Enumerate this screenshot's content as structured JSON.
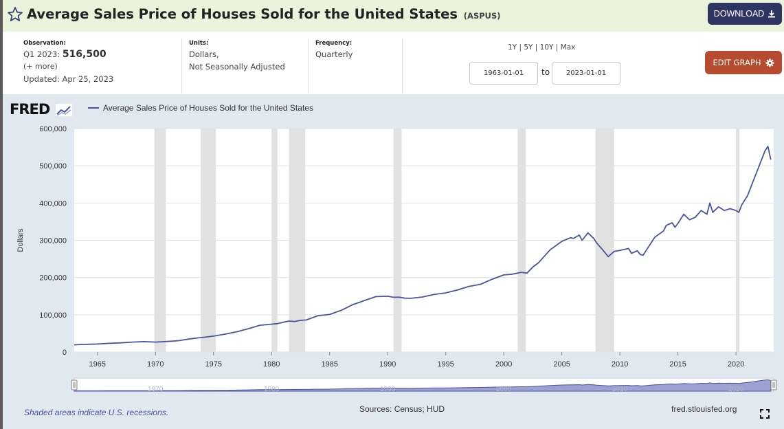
{
  "header": {
    "title": "Average Sales Price of Houses Sold for the United States",
    "series_id": "(ASPUS)",
    "download_label": "DOWNLOAD",
    "favorite_icon": "star-icon",
    "download_icon": "download-icon",
    "background_color": "#eaf3db",
    "download_button_color": "#2f3563"
  },
  "meta": {
    "observation_label": "Observation:",
    "observation_period": "Q1 2023:",
    "observation_value": "516,500",
    "more_link": "(+ more)",
    "updated": "Updated: Apr 25, 2023",
    "units_label": "Units:",
    "units_line1": "Dollars,",
    "units_line2": "Not Seasonally Adjusted",
    "frequency_label": "Frequency:",
    "frequency_value": "Quarterly"
  },
  "range": {
    "presets": [
      "1Y",
      "5Y",
      "10Y",
      "Max"
    ],
    "start_date": "1963-01-01",
    "end_date": "2023-01-01",
    "to_label": "to"
  },
  "edit_button": {
    "label": "EDIT GRAPH",
    "icon": "gear-icon",
    "color": "#b64b2f"
  },
  "chart_header": {
    "logo_text": "FRED",
    "logo_icon": "line-chart-icon",
    "legend_label": "Average Sales Price of Houses Sold for the United States",
    "legend_color": "#4953a1"
  },
  "chart_data": {
    "type": "line",
    "title": "",
    "xlabel": "",
    "ylabel": "Dollars",
    "xlim": [
      1963.0,
      2023.25
    ],
    "ylim": [
      0,
      600000
    ],
    "y_ticks": [
      0,
      100000,
      200000,
      300000,
      400000,
      500000,
      600000
    ],
    "y_tick_labels": [
      "0",
      "100,000",
      "200,000",
      "300,000",
      "400,000",
      "500,000",
      "600,000"
    ],
    "x_ticks": [
      1965,
      1970,
      1975,
      1980,
      1985,
      1990,
      1995,
      2000,
      2005,
      2010,
      2015,
      2020
    ],
    "x_tick_labels": [
      "1965",
      "1970",
      "1975",
      "1980",
      "1985",
      "1990",
      "1995",
      "2000",
      "2005",
      "2010",
      "2015",
      "2020"
    ],
    "grid": "horizontal",
    "legend": "top-left",
    "recessions": [
      [
        1969.9,
        1970.9
      ],
      [
        1973.9,
        1975.2
      ],
      [
        1980.0,
        1980.5
      ],
      [
        1981.5,
        1982.9
      ],
      [
        1990.5,
        1991.2
      ],
      [
        2001.2,
        2001.9
      ],
      [
        2007.9,
        2009.5
      ],
      [
        2020.0,
        2020.3
      ]
    ],
    "recession_color": "#e1e1e1",
    "series": [
      {
        "name": "Average Sales Price of Houses Sold for the United States",
        "color": "#4953a1",
        "x": [
          1963,
          1964,
          1965,
          1966,
          1967,
          1968,
          1969,
          1970,
          1971,
          1972,
          1973,
          1974,
          1975,
          1976,
          1977,
          1978,
          1979,
          1979.75,
          1980.5,
          1981,
          1981.5,
          1982,
          1982.5,
          1983,
          1984,
          1985,
          1986,
          1987,
          1988,
          1989,
          1990,
          1990.5,
          1991,
          1991.5,
          1992,
          1993,
          1994,
          1995,
          1996,
          1997,
          1998,
          1999,
          2000,
          2000.75,
          2001.5,
          2002,
          2002.5,
          2003,
          2004,
          2005,
          2005.75,
          2006,
          2006.5,
          2006.75,
          2007.25,
          2007.75,
          2008,
          2008.5,
          2009,
          2009.5,
          2010,
          2010.75,
          2011,
          2011.5,
          2011.75,
          2012,
          2013,
          2013.75,
          2014,
          2014.5,
          2014.75,
          2015,
          2015.5,
          2016,
          2016.5,
          2017,
          2017.5,
          2017.75,
          2018,
          2018.5,
          2019,
          2019.5,
          2020,
          2020.25,
          2020.5,
          2021,
          2021.5,
          2022,
          2022.5,
          2022.75,
          2023
        ],
        "values": [
          19300,
          20500,
          21500,
          23300,
          24600,
          26600,
          27900,
          26600,
          28300,
          30500,
          35500,
          38900,
          42600,
          48000,
          54200,
          62500,
          71800,
          74000,
          76000,
          80000,
          83000,
          82000,
          85000,
          86000,
          97600,
          100800,
          111900,
          127200,
          138300,
          148800,
          149800,
          147000,
          147200,
          144500,
          144100,
          147700,
          154500,
          158700,
          166400,
          176200,
          181900,
          195600,
          207000,
          209000,
          214000,
          212000,
          228000,
          240000,
          274500,
          297000,
          307000,
          305000,
          314000,
          300000,
          320000,
          305000,
          293000,
          275000,
          256000,
          270000,
          272900,
          278000,
          265000,
          272000,
          262000,
          260000,
          308000,
          325000,
          340000,
          347000,
          335000,
          345000,
          370000,
          355000,
          362000,
          380000,
          370000,
          400000,
          375000,
          390000,
          380000,
          385000,
          380000,
          375000,
          395000,
          420000,
          460000,
          500000,
          540000,
          552000,
          516500
        ]
      }
    ]
  },
  "navigator": {
    "tick_labels": [
      "1970",
      "1980",
      "1990",
      "2000",
      "2010",
      "2020"
    ],
    "fill_color": "#9ba1d1"
  },
  "footer": {
    "recession_note": "Shaded areas indicate U.S. recessions.",
    "sources": "Sources: Census; HUD",
    "site": "fred.stlouisfed.org",
    "fullscreen_icon": "fullscreen-icon"
  }
}
